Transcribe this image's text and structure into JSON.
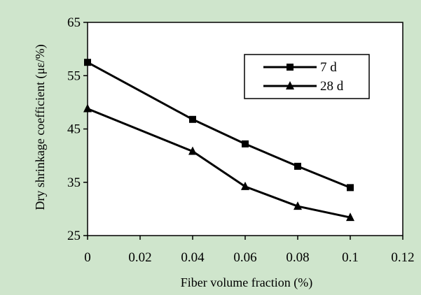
{
  "chart_data": {
    "type": "line",
    "xlabel": "Fiber volume fraction (%)",
    "ylabel": "Dry shrinkage coefficient (με/%)",
    "xlim": [
      0,
      0.12
    ],
    "ylim": [
      25,
      65
    ],
    "x_ticks": [
      "0",
      "0.02",
      "0.04",
      "0.06",
      "0.08",
      "0.1",
      "0.12"
    ],
    "y_ticks": [
      "25",
      "35",
      "45",
      "55",
      "65"
    ],
    "x": [
      0,
      0.04,
      0.06,
      0.08,
      0.1
    ],
    "series": [
      {
        "name": "7 d",
        "marker": "square",
        "values": [
          57.5,
          46.8,
          42.2,
          38.0,
          34.0
        ]
      },
      {
        "name": "28 d",
        "marker": "triangle",
        "values": [
          48.8,
          40.8,
          34.2,
          30.5,
          28.4
        ]
      }
    ],
    "grid": false,
    "legend": "top-right",
    "background_color": "#cfe5cc",
    "plot_background_color": "#ffffff",
    "line_color": "#000000"
  }
}
